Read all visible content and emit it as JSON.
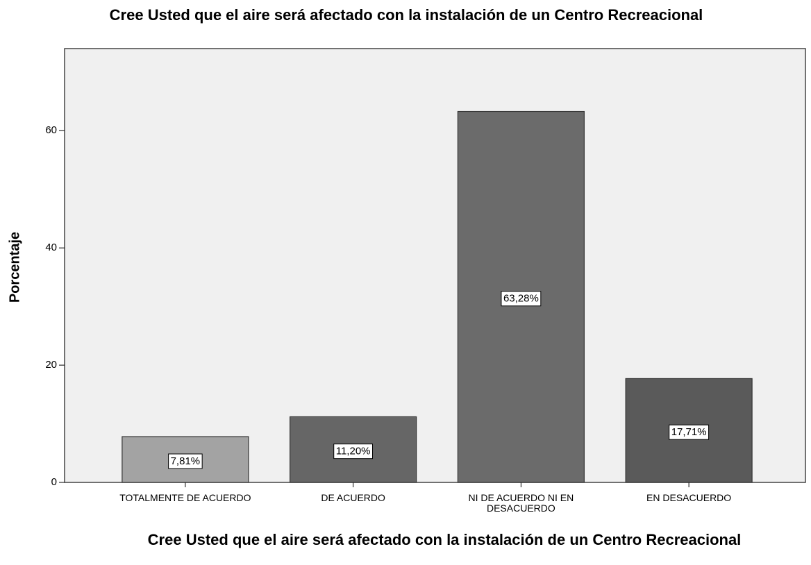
{
  "chart_data": {
    "type": "bar",
    "title": "Cree Usted que el aire será afectado con la instalación de un Centro Recreacional",
    "x_label": "Cree Usted que el aire será afectado con la instalación de un Centro Recreacional",
    "y_label": "Porcentaje",
    "categories": [
      "TOTALMENTE DE ACUERDO",
      "DE ACUERDO",
      "NI DE ACUERDO NI EN DESACUERDO",
      "EN DESACUERDO"
    ],
    "values": [
      7.81,
      11.2,
      63.28,
      17.71
    ],
    "value_labels": [
      "7,81%",
      "11,20%",
      "63,28%",
      "17,71%"
    ],
    "colors": [
      "#a3a3a3",
      "#666666",
      "#6b6b6b",
      "#5a5a5a"
    ],
    "ylim": [
      0,
      74
    ],
    "yticks": [
      0,
      20,
      40,
      60
    ],
    "grid": false
  }
}
